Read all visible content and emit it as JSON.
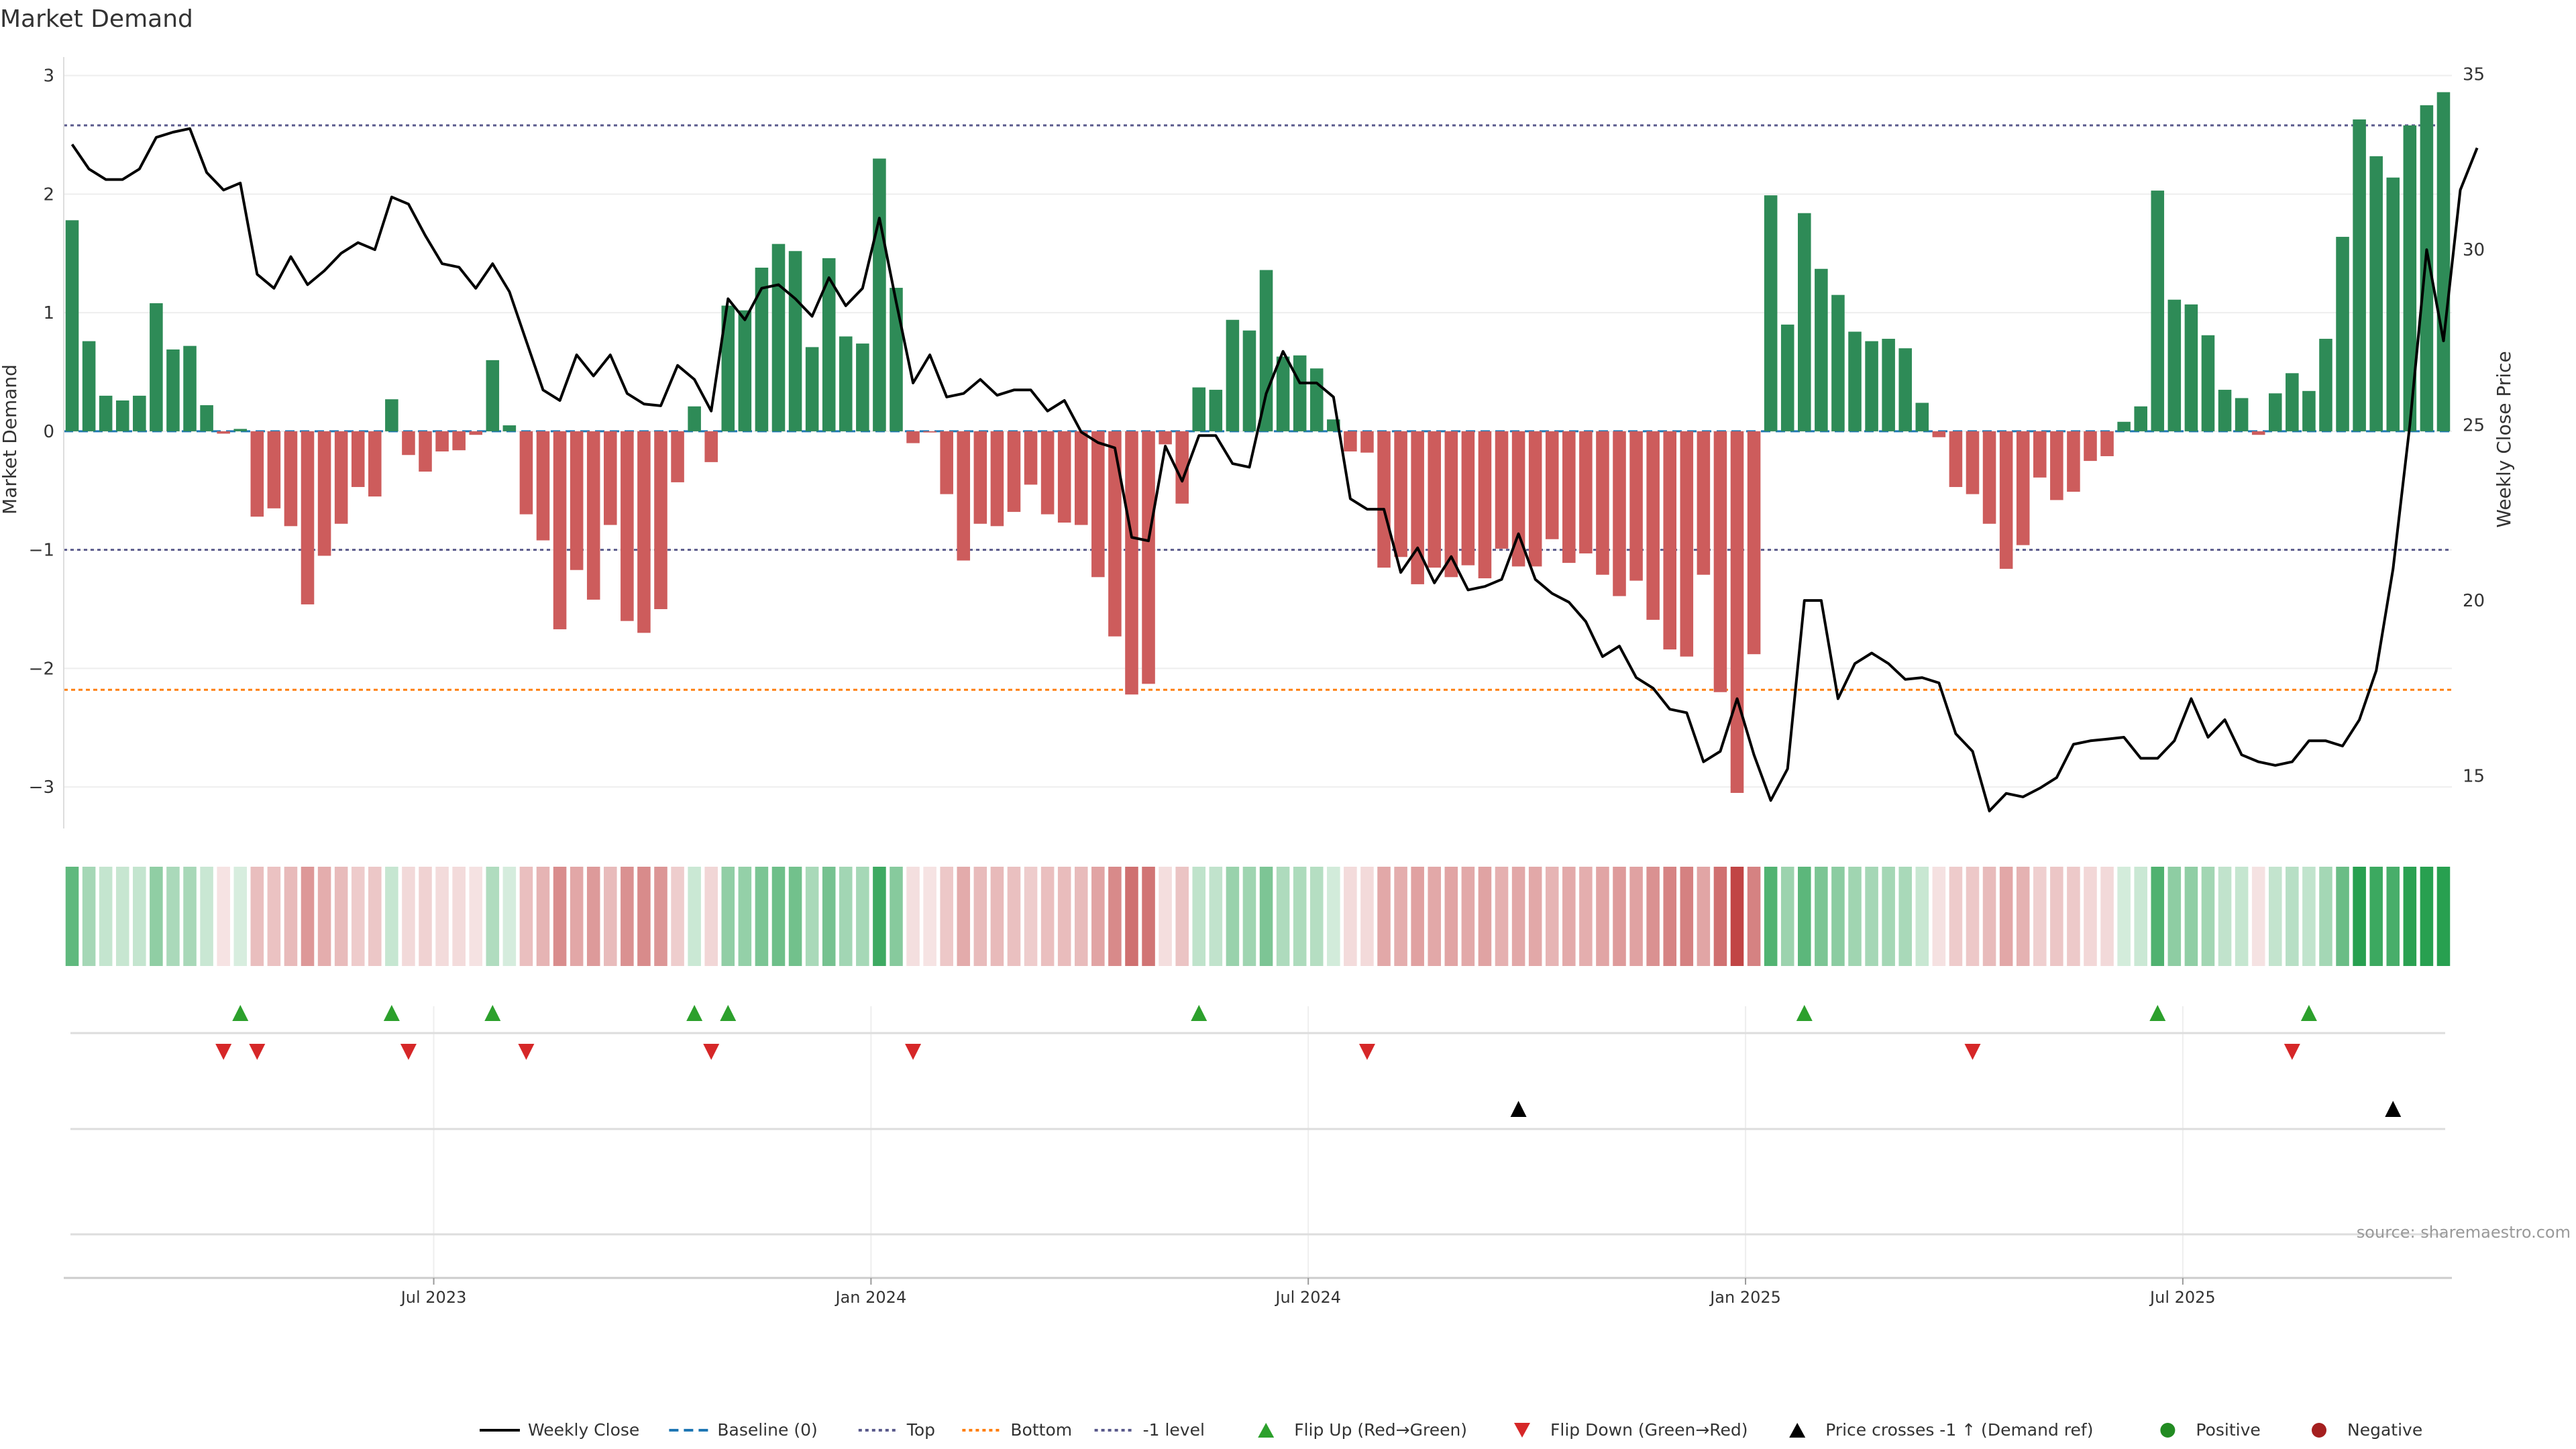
{
  "title": "Market Demand",
  "source": "source: sharemaestro.com",
  "colors": {
    "positive": "#2e8b57",
    "negative": "#cd5c5c",
    "price_line": "#000000",
    "baseline": "#1f77b4",
    "top_line": "#5a5a8c",
    "bottom_line": "#ff7f0e",
    "flip_up": "#2ca02c",
    "flip_down": "#d62728"
  },
  "chart_data": {
    "type": "bar",
    "ylabel": "Market Demand",
    "y2label": "Weekly Close Price",
    "ylim": [
      -3.35,
      3.1
    ],
    "y2lim": [
      13.5,
      35.3
    ],
    "yticks": [
      {
        "v": 3,
        "t": "3"
      },
      {
        "v": 2,
        "t": "2"
      },
      {
        "v": 1,
        "t": "1"
      },
      {
        "v": 0,
        "t": "0"
      },
      {
        "v": -1,
        "t": "−1"
      },
      {
        "v": -2,
        "t": "−2"
      },
      {
        "v": -3,
        "t": "−3"
      }
    ],
    "y2ticks": [
      {
        "v": 35,
        "t": "35"
      },
      {
        "v": 30,
        "t": "30"
      },
      {
        "v": 25,
        "t": "25"
      },
      {
        "v": 20,
        "t": "20"
      },
      {
        "v": 15,
        "t": "15"
      }
    ],
    "xticks": [
      {
        "i": 22,
        "t": "Jul 2023"
      },
      {
        "i": 48,
        "t": "Jan 2024"
      },
      {
        "i": 74,
        "t": "Jul 2024"
      },
      {
        "i": 100,
        "t": "Jan 2025"
      },
      {
        "i": 126,
        "t": "Jul 2025"
      }
    ],
    "top_level": 2.58,
    "bottom_level": -2.18,
    "minus1_level": -1.0,
    "demand": [
      1.78,
      0.76,
      0.3,
      0.26,
      0.3,
      1.08,
      0.69,
      0.72,
      0.22,
      -0.02,
      0.02,
      -0.72,
      -0.65,
      -0.8,
      -1.46,
      -1.05,
      -0.78,
      -0.47,
      -0.55,
      0.27,
      -0.2,
      -0.34,
      -0.17,
      -0.16,
      -0.03,
      0.6,
      0.05,
      -0.7,
      -0.92,
      -1.67,
      -1.17,
      -1.42,
      -0.79,
      -1.6,
      -1.7,
      -1.5,
      -0.43,
      0.21,
      -0.26,
      1.06,
      1.02,
      1.38,
      1.58,
      1.52,
      0.71,
      1.46,
      0.8,
      0.74,
      2.3,
      1.21,
      -0.1,
      -0.01,
      -0.53,
      -1.09,
      -0.78,
      -0.8,
      -0.68,
      -0.45,
      -0.7,
      -0.77,
      -0.79,
      -1.23,
      -1.73,
      -2.22,
      -2.13,
      -0.11,
      -0.61,
      0.37,
      0.35,
      0.94,
      0.85,
      1.36,
      0.63,
      0.64,
      0.53,
      0.1,
      -0.17,
      -0.18,
      -1.15,
      -1.06,
      -1.29,
      -1.15,
      -1.23,
      -1.13,
      -1.24,
      -0.99,
      -1.14,
      -1.14,
      -0.91,
      -1.11,
      -1.03,
      -1.21,
      -1.39,
      -1.26,
      -1.59,
      -1.84,
      -1.9,
      -1.21,
      -2.2,
      -3.05,
      -1.88,
      1.99,
      0.9,
      1.84,
      1.37,
      1.15,
      0.84,
      0.76,
      0.78,
      0.7,
      0.24,
      -0.05,
      -0.47,
      -0.53,
      -0.78,
      -1.16,
      -0.96,
      -0.39,
      -0.58,
      -0.51,
      -0.25,
      -0.21,
      0.08,
      0.21,
      2.03,
      1.11,
      1.07,
      0.81,
      0.35,
      0.28,
      -0.03,
      0.32,
      0.49,
      0.34,
      0.78,
      1.64,
      2.63,
      2.32,
      2.14,
      2.58,
      2.75,
      2.86
    ],
    "price": [
      33.0,
      32.3,
      32.0,
      32.0,
      32.3,
      33.2,
      33.35,
      33.45,
      32.2,
      31.7,
      31.9,
      29.3,
      28.9,
      29.8,
      29.0,
      29.4,
      29.9,
      30.2,
      30.0,
      31.5,
      31.3,
      30.4,
      29.6,
      29.5,
      28.9,
      29.6,
      28.8,
      27.4,
      26.0,
      25.7,
      27.0,
      26.4,
      27.0,
      25.9,
      25.6,
      25.55,
      26.7,
      26.3,
      25.4,
      28.6,
      28.0,
      28.9,
      29.0,
      28.6,
      28.1,
      29.2,
      28.4,
      28.9,
      30.9,
      28.5,
      26.2,
      27.0,
      25.8,
      25.9,
      26.3,
      25.85,
      26.0,
      26.0,
      25.4,
      25.7,
      24.8,
      24.5,
      24.35,
      21.8,
      21.7,
      24.4,
      23.4,
      24.7,
      24.7,
      23.9,
      23.8,
      25.9,
      27.1,
      26.2,
      26.2,
      25.8,
      22.9,
      22.6,
      22.6,
      20.8,
      21.5,
      20.5,
      21.25,
      20.3,
      20.4,
      20.6,
      21.9,
      20.6,
      20.2,
      19.95,
      19.4,
      18.4,
      18.7,
      17.8,
      17.5,
      16.9,
      16.8,
      15.4,
      15.7,
      17.2,
      15.6,
      14.3,
      15.2,
      20.0,
      20.0,
      17.2,
      18.2,
      18.5,
      18.2,
      17.75,
      17.8,
      17.65,
      16.2,
      15.7,
      14.0,
      14.5,
      14.4,
      14.65,
      14.95,
      15.9,
      16.0,
      16.05,
      16.1,
      15.5,
      15.5,
      16.0,
      17.2,
      16.1,
      16.6,
      15.6,
      15.4,
      15.3,
      15.4,
      16.0,
      16.0,
      15.85,
      16.6,
      18.0,
      20.9,
      25.0,
      30.0,
      27.4,
      31.7,
      32.9
    ],
    "flip_up": [
      10,
      19,
      25,
      37,
      39,
      67,
      103,
      124,
      133
    ],
    "flip_down": [
      9,
      11,
      20,
      27,
      38,
      50,
      77,
      113,
      132
    ],
    "price_cross": [
      86,
      138
    ],
    "legend": [
      {
        "kind": "line",
        "label": "Weekly Close"
      },
      {
        "kind": "dash",
        "label": "Baseline (0)"
      },
      {
        "kind": "dot",
        "label": "Top"
      },
      {
        "kind": "dot-orange",
        "label": "Bottom"
      },
      {
        "kind": "dot",
        "label": "-1 level"
      },
      {
        "kind": "tri-up-green",
        "label": "Flip Up (Red→Green)"
      },
      {
        "kind": "tri-down-red",
        "label": "Flip Down (Green→Red)"
      },
      {
        "kind": "tri-up-black",
        "label": "Price crosses -1 ↑ (Demand ref)"
      },
      {
        "kind": "dot-green",
        "label": "Positive"
      },
      {
        "kind": "dot-red",
        "label": "Negative"
      }
    ]
  }
}
